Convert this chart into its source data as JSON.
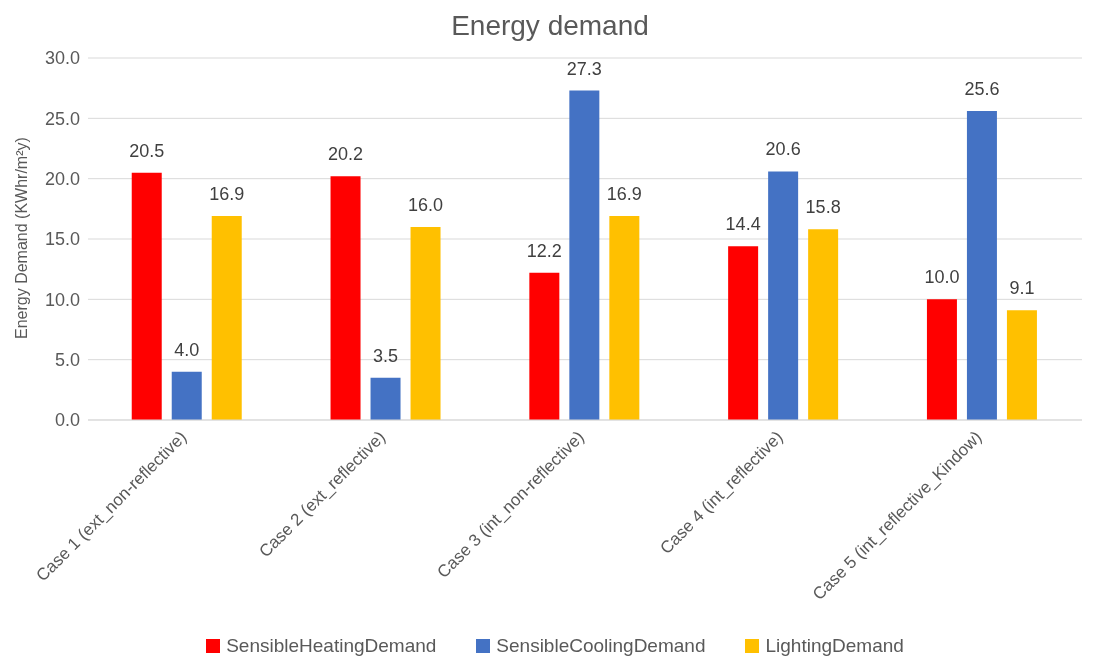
{
  "chart_data": {
    "type": "bar",
    "title": "Energy demand",
    "ylabel": "Energy Demand (KWhr/m²y)",
    "categories": [
      "Case 1 (ext_non-reflective)",
      "Case 2 (ext_reflective)",
      "Case 3 (int_non-reflective)",
      "Case 4 (int_reflective)",
      "Case 5 (int_reflective_Kindow)"
    ],
    "series": [
      {
        "name": "SensibleHeatingDemand",
        "color": "#ff0000",
        "values": [
          20.5,
          20.2,
          12.2,
          14.4,
          10.0
        ],
        "value_labels": [
          "20.5",
          "20.2",
          "12.2",
          "14.4",
          "10.0"
        ]
      },
      {
        "name": "SensibleCoolingDemand",
        "color": "#4472c4",
        "values": [
          4.0,
          3.5,
          27.3,
          20.6,
          25.6
        ],
        "value_labels": [
          "4.0",
          "3.5",
          "27.3",
          "20.6",
          "25.6"
        ]
      },
      {
        "name": "LightingDemand",
        "color": "#ffc000",
        "values": [
          16.9,
          16.0,
          16.9,
          15.8,
          9.1
        ],
        "value_labels": [
          "16.9",
          "16.0",
          "16.9",
          "15.8",
          "9.1"
        ]
      }
    ],
    "ylim": [
      0,
      30
    ],
    "yticks": [
      {
        "value": 0,
        "label": "0.0"
      },
      {
        "value": 5,
        "label": "5.0"
      },
      {
        "value": 10,
        "label": "10.0"
      },
      {
        "value": 15,
        "label": "15.0"
      },
      {
        "value": 20,
        "label": "20.0"
      },
      {
        "value": 25,
        "label": "25.0"
      },
      {
        "value": 30,
        "label": "30.0"
      }
    ],
    "grid": "y",
    "legend": "bottom"
  }
}
